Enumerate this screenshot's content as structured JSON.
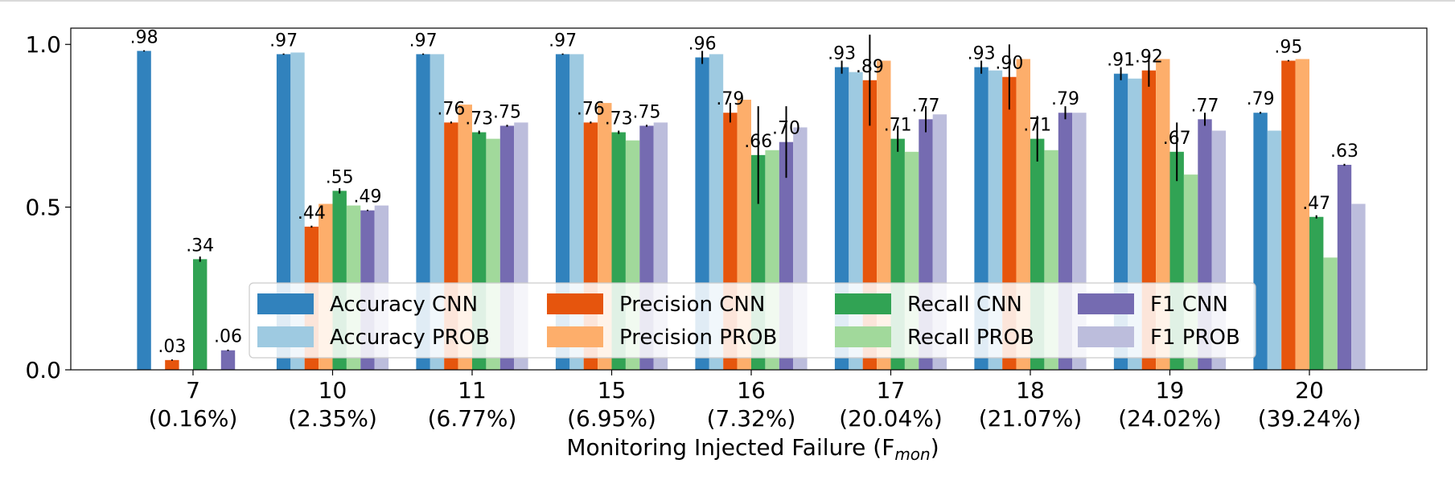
{
  "chart_data": {
    "type": "bar",
    "xlabel": "Monitoring Injected Failure (F",
    "xlabel_sub": "mon",
    "xlabel_close": ")",
    "ylabel": "",
    "ylim": [
      0,
      1.05
    ],
    "yticks": [
      {
        "value": 0.0,
        "label": "0.0"
      },
      {
        "value": 0.5,
        "label": "0.5"
      },
      {
        "value": 1.0,
        "label": "1.0"
      }
    ],
    "categories": [
      "7",
      "10",
      "11",
      "15",
      "16",
      "17",
      "18",
      "19",
      "20"
    ],
    "category_sublabels": [
      "(0.16%)",
      "(2.35%)",
      "(6.77%)",
      "(6.95%)",
      "(7.32%)",
      "(20.04%)",
      "(21.07%)",
      "(24.02%)",
      "(39.24%)"
    ],
    "legend_position": "lower center",
    "series": [
      {
        "name": "Accuracy CNN",
        "color": "#3182bd",
        "values": [
          0.98,
          0.97,
          0.97,
          0.97,
          0.96,
          0.93,
          0.93,
          0.91,
          0.79
        ],
        "labels": [
          ".98",
          ".97",
          ".97",
          ".97",
          ".96",
          ".93",
          ".93",
          ".91",
          ".79"
        ],
        "errors": [
          0.002,
          0.002,
          0.002,
          0.002,
          0.02,
          0.02,
          0.02,
          0.02,
          0.003
        ]
      },
      {
        "name": "Accuracy PROB",
        "color": "#9ecae1",
        "values": [
          0.0,
          0.975,
          0.97,
          0.97,
          0.97,
          0.915,
          0.92,
          0.895,
          0.735
        ]
      },
      {
        "name": "Precision CNN",
        "color": "#e6550d",
        "values": [
          0.03,
          0.44,
          0.76,
          0.76,
          0.79,
          0.89,
          0.9,
          0.92,
          0.95
        ],
        "labels": [
          ".03",
          ".44",
          ".76",
          ".76",
          ".79",
          ".89",
          ".90",
          ".92",
          ".95"
        ],
        "errors": [
          0.002,
          0.003,
          0.003,
          0.003,
          0.03,
          0.14,
          0.1,
          0.05,
          0.002
        ]
      },
      {
        "name": "Precision PROB",
        "color": "#fdae6b",
        "values": [
          0.0,
          0.51,
          0.815,
          0.82,
          0.83,
          0.95,
          0.955,
          0.955,
          0.955
        ]
      },
      {
        "name": "Recall CNN",
        "color": "#31a354",
        "values": [
          0.34,
          0.55,
          0.73,
          0.73,
          0.66,
          0.71,
          0.71,
          0.67,
          0.47
        ],
        "labels": [
          ".34",
          ".55",
          ".73",
          ".73",
          ".66",
          ".71",
          ".71",
          ".67",
          ".47"
        ],
        "errors": [
          0.008,
          0.008,
          0.005,
          0.005,
          0.15,
          0.04,
          0.07,
          0.09,
          0.005
        ]
      },
      {
        "name": "Recall PROB",
        "color": "#a1d99b",
        "values": [
          0.0,
          0.505,
          0.71,
          0.705,
          0.675,
          0.67,
          0.675,
          0.6,
          0.345
        ]
      },
      {
        "name": "F1 CNN",
        "color": "#756bb1",
        "values": [
          0.06,
          0.49,
          0.75,
          0.75,
          0.7,
          0.77,
          0.79,
          0.77,
          0.63
        ],
        "labels": [
          ".06",
          ".49",
          ".75",
          ".75",
          ".70",
          ".77",
          ".79",
          ".77",
          ".63"
        ],
        "errors": [
          0.002,
          0.002,
          0.003,
          0.003,
          0.11,
          0.04,
          0.02,
          0.02,
          0.003
        ]
      },
      {
        "name": "F1 PROB",
        "color": "#bcbddc",
        "values": [
          0.0,
          0.505,
          0.76,
          0.76,
          0.745,
          0.785,
          0.79,
          0.735,
          0.51
        ]
      }
    ]
  }
}
